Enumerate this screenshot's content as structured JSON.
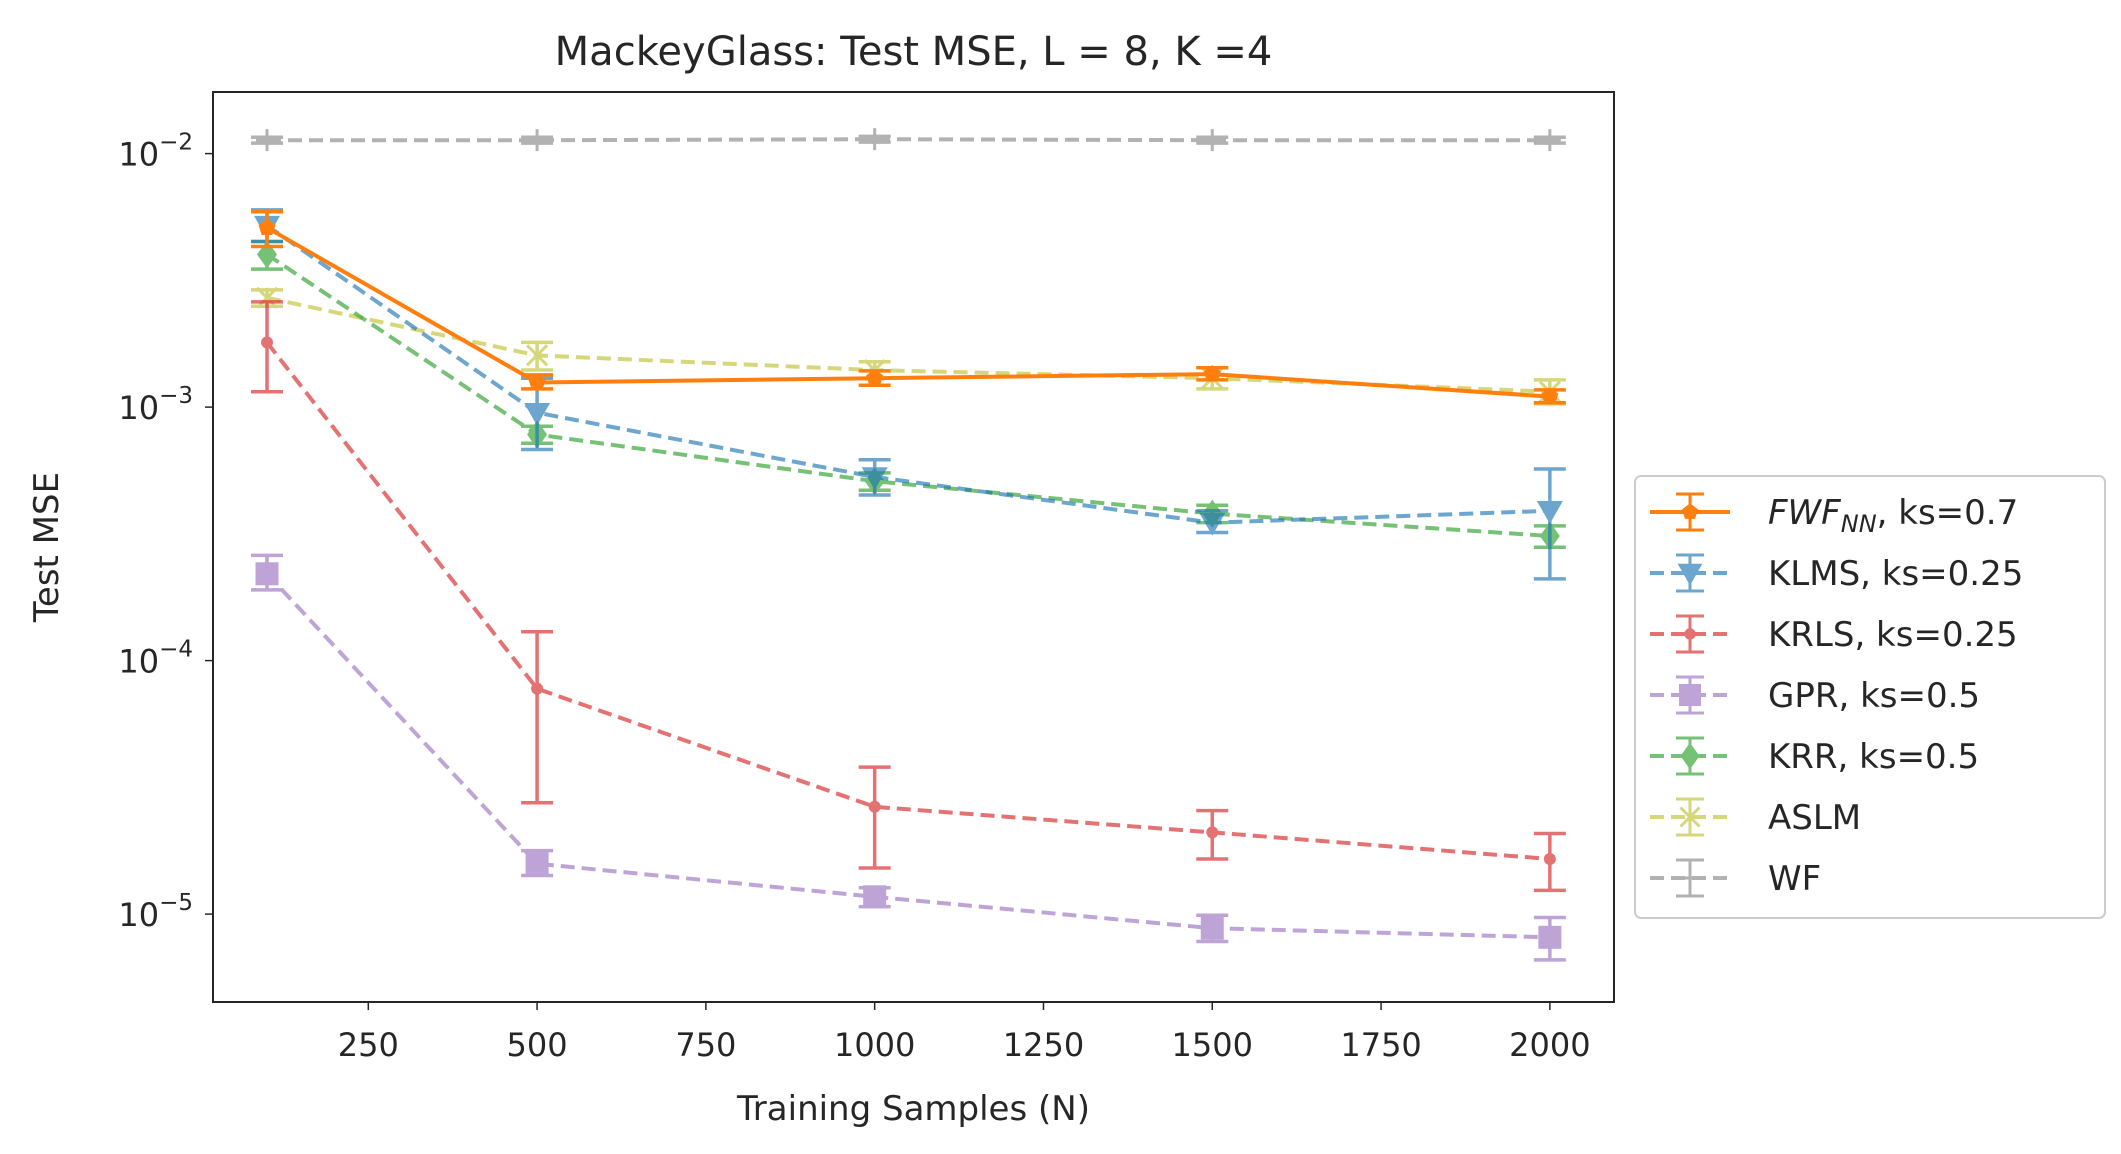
{
  "chart_data": {
    "type": "line",
    "title": "MackeyGlass: Test MSE, L = 8, K =4",
    "xlabel": "Training Samples (N)",
    "ylabel": "Test MSE",
    "x": [
      100,
      500,
      1000,
      1500,
      2000
    ],
    "xlim": [
      20,
      2095
    ],
    "ylim": [
      4.5e-06,
      0.0175
    ],
    "yscale": "log",
    "xticks": [
      250,
      500,
      750,
      1000,
      1250,
      1500,
      1750,
      2000
    ],
    "xtick_labels": [
      "250",
      "500",
      "750",
      "1000",
      "1250",
      "1500",
      "1750",
      "2000"
    ],
    "yticks": [
      1e-05,
      0.0001,
      0.001,
      0.01
    ],
    "ytick_labels": [
      {
        "base": "10",
        "exp": "−5"
      },
      {
        "base": "10",
        "exp": "−4"
      },
      {
        "base": "10",
        "exp": "−3"
      },
      {
        "base": "10",
        "exp": "−2"
      }
    ],
    "grid": false,
    "legend_position": "center-right-outside",
    "series": [
      {
        "name": "FWF_NN, ks=0.7",
        "label_main": "FWF",
        "label_sub": "NN",
        "label_rest": ", ks=0.7",
        "color": "#ff7f0e",
        "linestyle": "solid",
        "marker": "pentagon",
        "alpha": 1.0,
        "values": [
          0.0051,
          0.00125,
          0.0013,
          0.00135,
          0.0011
        ],
        "err_low": [
          0.0043,
          0.00118,
          0.00122,
          0.00128,
          0.00104
        ],
        "err_high": [
          0.0059,
          0.00134,
          0.00139,
          0.00143,
          0.00117
        ]
      },
      {
        "name": "KLMS, ks=0.25",
        "label_main": "KLMS, ks=0.25",
        "color": "#1f77b4",
        "linestyle": "dashed",
        "marker": "triangle-down",
        "alpha": 0.65,
        "values": [
          0.0052,
          0.00095,
          0.00053,
          0.00035,
          0.00039
        ],
        "err_low": [
          0.0045,
          0.00068,
          0.00045,
          0.00032,
          0.00021
        ],
        "err_high": [
          0.006,
          0.0013,
          0.00062,
          0.00039,
          0.00057
        ]
      },
      {
        "name": "KRLS, ks=0.25",
        "label_main": "KRLS, ks=0.25",
        "color": "#d62728",
        "linestyle": "dashed",
        "marker": "dot",
        "alpha": 0.65,
        "values": [
          0.0018,
          7.75e-05,
          2.65e-05,
          2.1e-05,
          1.65e-05
        ],
        "err_low": [
          0.00115,
          2.75e-05,
          1.52e-05,
          1.65e-05,
          1.24e-05
        ],
        "err_high": [
          0.0026,
          0.00013,
          3.8e-05,
          2.56e-05,
          2.08e-05
        ]
      },
      {
        "name": "GPR, ks=0.5",
        "label_main": "GPR, ks=0.5",
        "color": "#9467bd",
        "linestyle": "dashed",
        "marker": "square",
        "alpha": 0.6,
        "values": [
          0.00022,
          1.58e-05,
          1.17e-05,
          8.8e-06,
          8.1e-06
        ],
        "err_low": [
          0.00019,
          1.42e-05,
          1.07e-05,
          7.8e-06,
          6.6e-06
        ],
        "err_high": [
          0.00026,
          1.78e-05,
          1.27e-05,
          9.9e-06,
          9.7e-06
        ]
      },
      {
        "name": "KRR, ks=0.5",
        "label_main": "KRR, ks=0.5",
        "color": "#2ca02c",
        "linestyle": "dashed",
        "marker": "diamond",
        "alpha": 0.65,
        "values": [
          0.004,
          0.00078,
          0.00051,
          0.00038,
          0.00031
        ],
        "err_low": [
          0.0035,
          0.00072,
          0.00047,
          0.00035,
          0.00028
        ],
        "err_high": [
          0.0045,
          0.00084,
          0.00055,
          0.00041,
          0.00034
        ]
      },
      {
        "name": "ASLM",
        "label_main": "ASLM",
        "color": "#bcbd22",
        "linestyle": "dashed",
        "marker": "x",
        "alpha": 0.6,
        "values": [
          0.0027,
          0.0016,
          0.0014,
          0.0013,
          0.00115
        ],
        "err_low": [
          0.0025,
          0.0014,
          0.0013,
          0.00118,
          0.00103
        ],
        "err_high": [
          0.0029,
          0.0018,
          0.00151,
          0.00143,
          0.00128
        ]
      },
      {
        "name": "WF",
        "label_main": "WF",
        "color": "#7f7f7f",
        "linestyle": "dashed",
        "marker": "plus",
        "alpha": 0.6,
        "values": [
          0.0113,
          0.0113,
          0.0114,
          0.0113,
          0.0113
        ],
        "err_low": [
          0.011,
          0.011,
          0.0111,
          0.011,
          0.011
        ],
        "err_high": [
          0.0116,
          0.0116,
          0.0117,
          0.0116,
          0.0116
        ]
      }
    ]
  }
}
